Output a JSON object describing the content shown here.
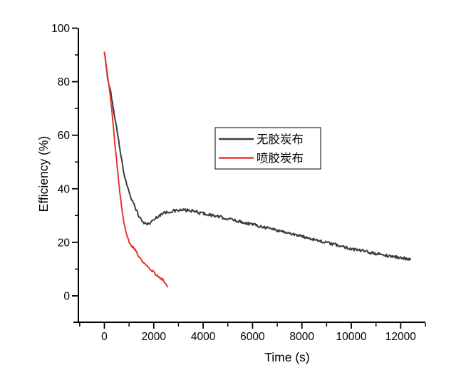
{
  "chart_data": {
    "type": "line",
    "title": "",
    "xlabel": "Time (s)",
    "ylabel": "Efficiency (%)",
    "xlim": [
      -1053,
      13000
    ],
    "ylim": [
      -10,
      100
    ],
    "x_major_ticks": [
      0,
      2000,
      4000,
      6000,
      8000,
      10000,
      12000
    ],
    "x_minor_ticks": [
      -1000,
      1000,
      3000,
      5000,
      7000,
      9000,
      11000,
      13000
    ],
    "y_major_ticks": [
      0,
      20,
      40,
      60,
      80,
      100
    ],
    "y_minor_ticks": [
      10,
      30,
      50,
      70,
      90
    ],
    "grid": false,
    "axis_color": "#000000",
    "legend": {
      "position": "inside-center",
      "border_color": "#000000",
      "background": "#ffffff"
    },
    "series": [
      {
        "name": "无胶炭布",
        "color": "#3c3c3c",
        "line_width": 2,
        "noise_amplitude": 0.55,
        "points": [
          [
            0,
            91
          ],
          [
            50,
            87.5
          ],
          [
            100,
            83.8
          ],
          [
            150,
            80.3
          ],
          [
            200,
            78.5
          ],
          [
            250,
            76.5
          ],
          [
            300,
            73.5
          ],
          [
            350,
            70.7
          ],
          [
            400,
            68
          ],
          [
            450,
            65.3
          ],
          [
            500,
            62.5
          ],
          [
            550,
            59.6
          ],
          [
            600,
            56.7
          ],
          [
            650,
            53.8
          ],
          [
            700,
            50.8
          ],
          [
            750,
            47.7
          ],
          [
            800,
            45
          ],
          [
            850,
            43.3
          ],
          [
            900,
            42
          ],
          [
            1000,
            39
          ],
          [
            1100,
            36.3
          ],
          [
            1200,
            34
          ],
          [
            1300,
            31.8
          ],
          [
            1400,
            29.8
          ],
          [
            1500,
            28.3
          ],
          [
            1600,
            27.3
          ],
          [
            1700,
            26.8
          ],
          [
            1800,
            27
          ],
          [
            1900,
            27.6
          ],
          [
            2000,
            28.4
          ],
          [
            2100,
            29.2
          ],
          [
            2200,
            29.9
          ],
          [
            2300,
            30.5
          ],
          [
            2400,
            30.9
          ],
          [
            2600,
            31.4
          ],
          [
            2800,
            31.7
          ],
          [
            3000,
            31.9
          ],
          [
            3200,
            32
          ],
          [
            3400,
            31.9
          ],
          [
            3600,
            31.6
          ],
          [
            3800,
            31.2
          ],
          [
            4000,
            30.8
          ],
          [
            4200,
            30.4
          ],
          [
            4400,
            30
          ],
          [
            4600,
            29.6
          ],
          [
            4800,
            29.2
          ],
          [
            5000,
            28.8
          ],
          [
            5200,
            28.4
          ],
          [
            5400,
            28
          ],
          [
            5600,
            27.5
          ],
          [
            5800,
            27.1
          ],
          [
            6000,
            26.7
          ],
          [
            6200,
            26.3
          ],
          [
            6400,
            25.9
          ],
          [
            6600,
            25.4
          ],
          [
            6800,
            25
          ],
          [
            7000,
            24.5
          ],
          [
            7200,
            24.1
          ],
          [
            7400,
            23.6
          ],
          [
            7600,
            23.1
          ],
          [
            7800,
            22.7
          ],
          [
            8000,
            22.2
          ],
          [
            8200,
            21.8
          ],
          [
            8400,
            21.3
          ],
          [
            8600,
            20.8
          ],
          [
            8800,
            20.3
          ],
          [
            9000,
            19.9
          ],
          [
            9200,
            19.4
          ],
          [
            9400,
            19
          ],
          [
            9600,
            18.5
          ],
          [
            9800,
            18.1
          ],
          [
            10000,
            17.6
          ],
          [
            10200,
            17.2
          ],
          [
            10400,
            16.9
          ],
          [
            10600,
            16.5
          ],
          [
            10800,
            16.1
          ],
          [
            11000,
            15.8
          ],
          [
            11200,
            15.4
          ],
          [
            11400,
            15.1
          ],
          [
            11600,
            14.8
          ],
          [
            11800,
            14.5
          ],
          [
            12000,
            14.2
          ],
          [
            12200,
            14
          ],
          [
            12400,
            13.8
          ]
        ]
      },
      {
        "name": "喷胶炭布",
        "color": "#e8352f",
        "line_width": 2,
        "noise_amplitude": 0.45,
        "points": [
          [
            0,
            91
          ],
          [
            50,
            87.3
          ],
          [
            100,
            84
          ],
          [
            150,
            80.7
          ],
          [
            200,
            77.3
          ],
          [
            250,
            73.5
          ],
          [
            300,
            69.5
          ],
          [
            350,
            64.4
          ],
          [
            400,
            59.5
          ],
          [
            450,
            54.8
          ],
          [
            500,
            50
          ],
          [
            550,
            45.3
          ],
          [
            600,
            40.8
          ],
          [
            650,
            36.8
          ],
          [
            700,
            33
          ],
          [
            750,
            29.8
          ],
          [
            800,
            27.2
          ],
          [
            850,
            25
          ],
          [
            900,
            23.2
          ],
          [
            950,
            21.6
          ],
          [
            1000,
            20.3
          ],
          [
            1100,
            18.6
          ],
          [
            1200,
            17.8
          ],
          [
            1250,
            17.3
          ],
          [
            1300,
            16.4
          ],
          [
            1400,
            14.8
          ],
          [
            1500,
            13.3
          ],
          [
            1600,
            12.2
          ],
          [
            1700,
            11.4
          ],
          [
            1800,
            10.3
          ],
          [
            1900,
            9.5
          ],
          [
            2000,
            9
          ],
          [
            2100,
            7.9
          ],
          [
            2200,
            7.2
          ],
          [
            2300,
            6.3
          ],
          [
            2400,
            5.8
          ],
          [
            2450,
            5
          ],
          [
            2500,
            4.1
          ],
          [
            2550,
            3.4
          ]
        ]
      }
    ]
  }
}
